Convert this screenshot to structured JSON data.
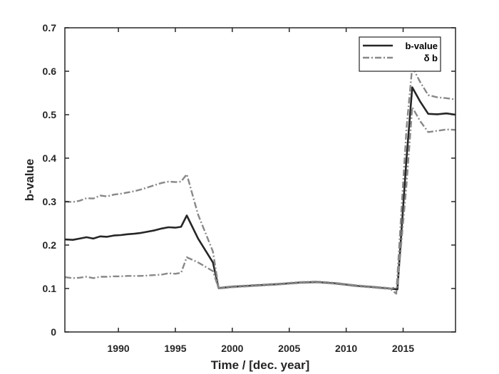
{
  "chart_data": {
    "type": "line",
    "title": "",
    "xlabel": "Time / [dec. year]",
    "ylabel": "b-value",
    "xlim": [
      1985.3,
      2019.6
    ],
    "ylim": [
      0,
      0.7
    ],
    "xticks": [
      1990,
      1995,
      2000,
      2005,
      2010,
      2015
    ],
    "yticks": [
      0,
      0.1,
      0.2,
      0.3,
      0.4,
      0.5,
      0.6,
      0.7
    ],
    "grid": false,
    "legend_position": "top-right",
    "series": [
      {
        "name": "b-value",
        "style": "solid",
        "color": "#262626",
        "x": [
          1985.3,
          1986.0,
          1986.6,
          1987.2,
          1987.8,
          1988.4,
          1989.0,
          1989.6,
          1990.2,
          1990.8,
          1991.4,
          1992.0,
          1992.6,
          1993.2,
          1993.8,
          1994.4,
          1995.0,
          1995.5,
          1996.0,
          1997.0,
          1998.3,
          1998.8,
          2000.0,
          2002.0,
          2004.0,
          2006.0,
          2007.5,
          2009.0,
          2011.0,
          2012.5,
          2013.8,
          2014.5,
          2015.3,
          2015.8,
          2016.5,
          2017.2,
          2018.0,
          2018.8,
          2019.6
        ],
        "y": [
          0.213,
          0.212,
          0.215,
          0.218,
          0.215,
          0.22,
          0.219,
          0.222,
          0.223,
          0.225,
          0.226,
          0.228,
          0.231,
          0.234,
          0.238,
          0.241,
          0.24,
          0.242,
          0.268,
          0.215,
          0.16,
          0.101,
          0.104,
          0.107,
          0.11,
          0.114,
          0.115,
          0.112,
          0.106,
          0.103,
          0.1,
          0.098,
          0.4,
          0.563,
          0.53,
          0.502,
          0.501,
          0.503,
          0.5
        ]
      },
      {
        "name": "δ b",
        "style": "dashdot",
        "color": "#888888",
        "x": [
          1985.3,
          1986.0,
          1986.6,
          1987.2,
          1987.8,
          1988.4,
          1989.0,
          1989.6,
          1990.2,
          1990.8,
          1991.4,
          1992.0,
          1992.6,
          1993.2,
          1993.8,
          1994.4,
          1995.0,
          1995.5,
          1996.0,
          1997.0,
          1998.3,
          1998.8,
          2000.0,
          2002.0,
          2004.0,
          2006.0,
          2007.5,
          2009.0,
          2011.0,
          2012.5,
          2013.8,
          2014.4,
          2015.3,
          2015.8,
          2016.5,
          2017.2,
          2018.0,
          2018.8,
          2019.6
        ],
        "y": [
          0.3,
          0.299,
          0.302,
          0.308,
          0.307,
          0.314,
          0.312,
          0.316,
          0.318,
          0.321,
          0.324,
          0.328,
          0.333,
          0.338,
          0.343,
          0.346,
          0.345,
          0.346,
          0.363,
          0.27,
          0.185,
          0.102,
          0.105,
          0.108,
          0.111,
          0.115,
          0.116,
          0.113,
          0.107,
          0.104,
          0.101,
          0.088,
          0.47,
          0.61,
          0.575,
          0.545,
          0.54,
          0.538,
          0.535
        ]
      },
      {
        "name": "",
        "style": "dashdot",
        "color": "#888888",
        "x": [
          1985.3,
          1986.0,
          1986.6,
          1987.2,
          1987.8,
          1988.4,
          1989.0,
          1989.6,
          1990.2,
          1990.8,
          1991.4,
          1992.0,
          1992.6,
          1993.2,
          1993.8,
          1994.4,
          1995.0,
          1995.5,
          1996.0,
          1997.0,
          1998.3,
          1998.8,
          2000.0,
          2002.0,
          2004.0,
          2006.0,
          2007.5,
          2009.0,
          2011.0,
          2012.5,
          2013.8,
          2014.5,
          2015.3,
          2015.8,
          2016.5,
          2017.2,
          2018.0,
          2018.8,
          2019.6
        ],
        "y": [
          0.126,
          0.124,
          0.125,
          0.127,
          0.124,
          0.127,
          0.127,
          0.128,
          0.128,
          0.129,
          0.129,
          0.129,
          0.13,
          0.131,
          0.132,
          0.135,
          0.134,
          0.136,
          0.172,
          0.16,
          0.14,
          0.1,
          0.103,
          0.106,
          0.109,
          0.113,
          0.114,
          0.111,
          0.105,
          0.102,
          0.099,
          0.104,
          0.34,
          0.517,
          0.485,
          0.46,
          0.463,
          0.466,
          0.465
        ]
      }
    ]
  }
}
